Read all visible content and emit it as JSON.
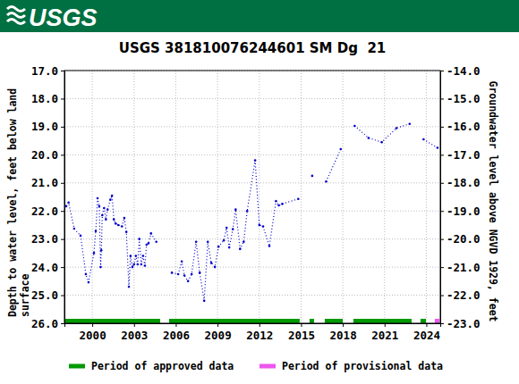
{
  "header": {
    "logo_text": "USGS"
  },
  "chart_data": {
    "type": "line",
    "title": "USGS 381810076244601 SM Dg  21",
    "ylabel": [
      "Depth to water level, feet below land",
      "surface"
    ],
    "y2label": "Groundwater level above NGVD 1929, feet",
    "grid": true,
    "xlim": [
      1998,
      2025
    ],
    "xticks": [
      2000,
      2003,
      2006,
      2009,
      2012,
      2015,
      2018,
      2021,
      2024
    ],
    "ylim": [
      17,
      26
    ],
    "yticks": [
      {
        "value": 17,
        "label": "17.0"
      },
      {
        "value": 18,
        "label": "18.0"
      },
      {
        "value": 19,
        "label": "19.0"
      },
      {
        "value": 20,
        "label": "20.0"
      },
      {
        "value": 21,
        "label": "21.0"
      },
      {
        "value": 22,
        "label": "22.0"
      },
      {
        "value": 23,
        "label": "23.0"
      },
      {
        "value": 24,
        "label": "24.0"
      },
      {
        "value": 25,
        "label": "25.0"
      },
      {
        "value": 26,
        "label": "26.0"
      }
    ],
    "y2lim": [
      -14,
      -23
    ],
    "y2ticks": [
      {
        "value": -14,
        "label": "-14.0"
      },
      {
        "value": -15,
        "label": "-15.0"
      },
      {
        "value": -16,
        "label": "-16.0"
      },
      {
        "value": -17,
        "label": "-17.0"
      },
      {
        "value": -18,
        "label": "-18.0"
      },
      {
        "value": -19,
        "label": "-19.0"
      },
      {
        "value": -20,
        "label": "-20.0"
      },
      {
        "value": -21,
        "label": "-21.0"
      },
      {
        "value": -22,
        "label": "-22.0"
      },
      {
        "value": -23,
        "label": "-23.0"
      }
    ],
    "x": [
      1998.13,
      1998.3,
      1998.7,
      1999.16,
      1999.54,
      1999.73,
      2000.12,
      2000.25,
      2000.38,
      2000.5,
      2000.6,
      2000.65,
      2000.72,
      2000.85,
      2000.98,
      2001.1,
      2001.3,
      2001.42,
      2001.55,
      2001.68,
      2001.87,
      2002.13,
      2002.3,
      2002.45,
      2002.63,
      2002.75,
      2002.88,
      2003.0,
      2003.13,
      2003.26,
      2003.38,
      2003.52,
      2003.65,
      2003.78,
      2003.9,
      2004.04,
      2004.22,
      2004.6,
      null,
      2005.72,
      2006.17,
      2006.43,
      2006.62,
      2006.88,
      2007.14,
      2007.46,
      2007.72,
      2008.04,
      2008.3,
      2008.55,
      2008.81,
      2009.07,
      2009.45,
      2009.65,
      2009.84,
      2010.1,
      2010.3,
      2010.62,
      2010.88,
      2011.13,
      2011.7,
      2012.0,
      2012.27,
      2012.72,
      2013.2,
      2013.4,
      2013.65,
      2014.8,
      null,
      2015.8,
      null,
      2016.8,
      2017.85,
      null,
      2018.85,
      2019.85,
      2020.8,
      2021.85,
      2022.8,
      null,
      2023.8,
      2024.8
    ],
    "series": [
      {
        "color": "#0000cc",
        "marker": "circle",
        "line_style": "dotted",
        "values": [
          21.83,
          21.7,
          22.63,
          22.88,
          24.25,
          24.54,
          23.5,
          22.72,
          21.55,
          21.83,
          24.0,
          23.4,
          22.15,
          21.9,
          22.3,
          21.95,
          21.6,
          21.45,
          22.3,
          22.45,
          22.5,
          22.55,
          22.25,
          22.75,
          24.7,
          23.6,
          24.0,
          23.9,
          23.6,
          23.9,
          23.0,
          23.9,
          23.6,
          23.95,
          23.2,
          23.15,
          22.8,
          23.1,
          null,
          24.2,
          24.25,
          23.8,
          24.3,
          24.5,
          24.25,
          23.1,
          24.2,
          25.2,
          23.1,
          23.85,
          24.0,
          23.27,
          23.05,
          22.6,
          23.3,
          22.65,
          21.95,
          23.35,
          23.1,
          22.0,
          20.2,
          22.5,
          22.55,
          23.25,
          21.65,
          21.8,
          21.75,
          21.57,
          null,
          20.75,
          null,
          20.95,
          19.8,
          null,
          18.97,
          19.4,
          19.55,
          19.05,
          18.9,
          null,
          19.45,
          19.75
        ]
      }
    ],
    "periods": [
      {
        "name": "Period of approved data",
        "color": "#009900",
        "ranges": [
          [
            1998.0,
            2004.88
          ],
          [
            2005.52,
            2014.9
          ],
          [
            2015.61,
            2015.93
          ],
          [
            2016.7,
            2017.99
          ],
          [
            2018.76,
            2022.94
          ],
          [
            2023.58,
            2023.97
          ]
        ]
      },
      {
        "name": "Period of provisional data",
        "color": "#ee55ee",
        "ranges": [
          [
            2024.61,
            2024.93
          ]
        ]
      }
    ]
  }
}
